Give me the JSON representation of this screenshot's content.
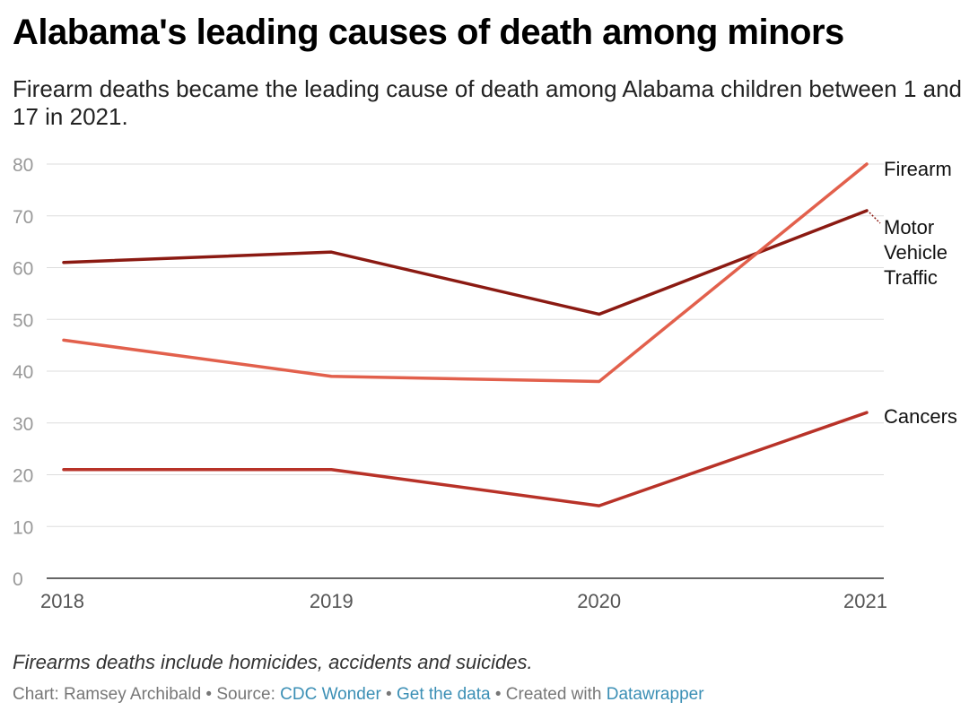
{
  "header": {
    "title": "Alabama's leading causes of death among minors",
    "subtitle": "Firearm deaths became the leading cause of death among Alabama children between 1 and 17 in 2021."
  },
  "chart_data": {
    "type": "line",
    "title": "Alabama's leading causes of death among minors",
    "subtitle": "Firearm deaths became the leading cause of death among Alabama children between 1 and 17 in 2021.",
    "x": [
      "2018",
      "2019",
      "2020",
      "2021"
    ],
    "y_ticks": [
      0,
      10,
      20,
      30,
      40,
      50,
      60,
      70,
      80
    ],
    "ylim": [
      0,
      80
    ],
    "grid": true,
    "legend": "direct labels at right end of lines",
    "series": [
      {
        "name": "Motor Vehicle Traffic",
        "label_lines": [
          "Motor",
          "Vehicle",
          "Traffic"
        ],
        "values": [
          61,
          63,
          51,
          71
        ],
        "color": "#8b1a12"
      },
      {
        "name": "Firearm",
        "label_lines": [
          "Firearm"
        ],
        "values": [
          46,
          39,
          38,
          80
        ],
        "color": "#e2604c"
      },
      {
        "name": "Cancers",
        "label_lines": [
          "Cancers"
        ],
        "values": [
          21,
          21,
          14,
          32
        ],
        "color": "#b83228"
      }
    ]
  },
  "notes": {
    "caption": "Firearms deaths include homicides, accidents and suicides."
  },
  "footer": {
    "chart_by": "Chart: Ramsey Archibald",
    "sep": " • ",
    "source_prefix": "Source: ",
    "source_link": "CDC Wonder",
    "get_data": "Get the data",
    "created_prefix": "Created with ",
    "created_link": "Datawrapper"
  }
}
